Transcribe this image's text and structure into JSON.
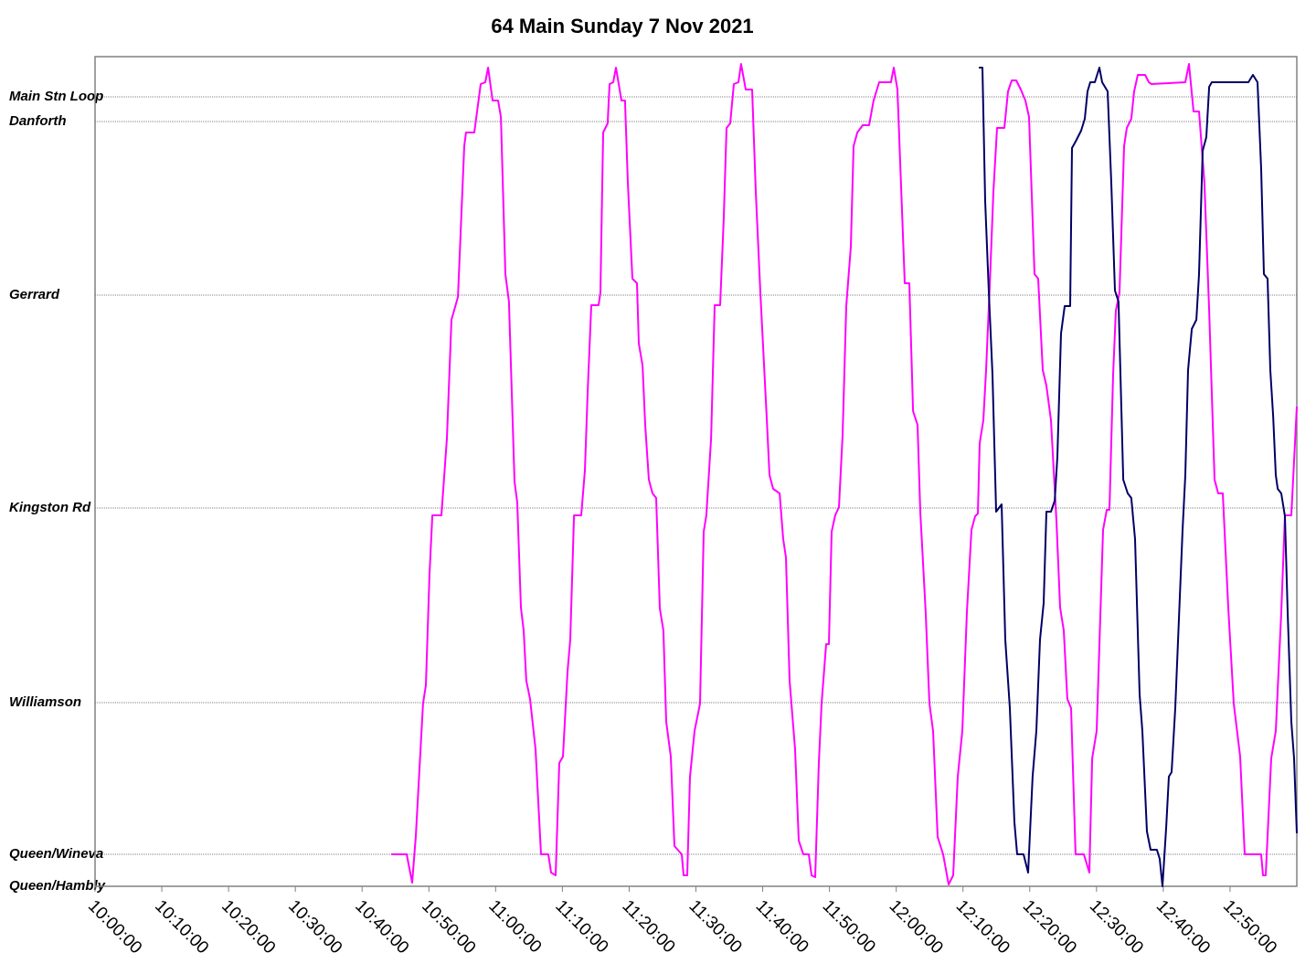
{
  "chart_data": {
    "type": "line",
    "title": "64 Main Sunday 7 Nov 2021",
    "xlim": [
      "10:00:00",
      "13:00:00"
    ],
    "xticks": [
      "10:00:00",
      "10:10:00",
      "10:20:00",
      "10:30:00",
      "10:40:00",
      "10:50:00",
      "11:00:00",
      "11:10:00",
      "11:20:00",
      "11:30:00",
      "11:40:00",
      "11:50:00",
      "12:00:00",
      "12:10:00",
      "12:20:00",
      "12:30:00",
      "12:40:00",
      "12:50:00"
    ],
    "ylim": [
      0,
      90.8
    ],
    "yticks": [
      {
        "value": 0,
        "label": "Queen/Hambly"
      },
      {
        "value": 3.5,
        "label": "Queen/Wineva"
      },
      {
        "value": 20.1,
        "label": "Williamson"
      },
      {
        "value": 41.4,
        "label": "Kingston Rd"
      },
      {
        "value": 64.7,
        "label": "Gerrard"
      },
      {
        "value": 83.7,
        "label": "Danforth"
      },
      {
        "value": 86.4,
        "label": "Main Stn Loop"
      }
    ],
    "grid": true,
    "series": [
      {
        "color": "#ff00ff",
        "x": [
          "10:44:21",
          "10:46:41",
          "10:47:30",
          "10:48:03",
          "10:49:08",
          "10:49:33",
          "10:50:06",
          "10:50:31",
          "10:51:53",
          "10:52:42",
          "10:53:23",
          "10:54:21",
          "10:55:18",
          "10:55:34",
          "10:56:48",
          "10:57:46",
          "10:58:27",
          "10:58:52",
          "10:59:33",
          "11:00:22",
          "11:00:47",
          "11:01:28",
          "11:02:00",
          "11:02:50",
          "11:03:14",
          "11:03:47",
          "11:04:12",
          "11:04:36",
          "11:05:09",
          "11:05:59",
          "11:06:48",
          "11:07:54",
          "11:08:18",
          "11:08:59",
          "11:09:32",
          "11:10:05",
          "11:10:46",
          "11:11:11",
          "11:11:44",
          "11:12:49",
          "11:13:22",
          "11:13:47",
          "11:14:20",
          "11:15:25",
          "11:15:42",
          "11:16:06",
          "11:16:47",
          "11:17:04",
          "11:17:37",
          "11:18:01",
          "11:18:51",
          "11:19:23",
          "11:19:48",
          "11:20:29",
          "11:21:10",
          "11:21:27",
          "11:22:00",
          "11:22:24",
          "11:22:57",
          "11:23:30",
          "11:24:03",
          "11:24:36",
          "11:25:08",
          "11:25:33",
          "11:26:14",
          "11:26:47",
          "11:27:53",
          "11:28:09",
          "11:28:42",
          "11:29:07",
          "11:29:48",
          "11:30:37",
          "11:31:10",
          "11:31:34",
          "11:32:16",
          "11:32:48",
          "11:33:38",
          "11:34:10",
          "11:34:35",
          "11:35:08",
          "11:35:41",
          "11:36:22",
          "11:36:46",
          "11:37:28",
          "11:38:25",
          "11:38:58",
          "11:39:39",
          "11:40:37",
          "11:41:01",
          "11:41:34",
          "11:42:32",
          "11:43:04",
          "11:43:29",
          "11:44:02",
          "11:44:51",
          "11:45:24",
          "11:46:05",
          "11:46:54",
          "11:47:19",
          "11:47:52",
          "11:48:25",
          "11:48:49",
          "11:49:30",
          "11:49:55",
          "11:50:20",
          "11:50:52",
          "11:51:25",
          "11:51:58",
          "11:52:31",
          "11:53:12",
          "11:53:37",
          "11:54:10",
          "11:54:59",
          "11:55:56",
          "11:56:37",
          "11:57:27",
          "11:59:13",
          "11:59:38",
          "12:00:11",
          "12:01:17",
          "12:01:58",
          "12:02:31",
          "12:03:12",
          "12:03:36",
          "12:04:25",
          "12:04:58",
          "12:05:31",
          "12:06:12",
          "12:07:02",
          "12:07:51",
          "12:08:32",
          "12:09:13",
          "12:09:54",
          "12:10:35",
          "12:11:16",
          "12:11:49",
          "12:12:14",
          "12:12:30",
          "12:13:03",
          "12:13:28",
          "12:14:01",
          "12:14:33",
          "12:15:06",
          "12:16:12",
          "12:16:45",
          "12:17:18",
          "12:17:59",
          "12:18:40",
          "12:19:21",
          "12:19:54",
          "12:20:43",
          "12:21:16",
          "12:21:57",
          "12:22:30",
          "12:23:11",
          "12:24:00",
          "12:24:33",
          "12:25:06",
          "12:25:38",
          "12:26:11",
          "12:26:52",
          "12:28:06",
          "12:28:56",
          "12:29:21",
          "12:30:01",
          "12:30:59",
          "12:31:32",
          "12:31:56",
          "12:32:29",
          "12:32:54",
          "12:33:27",
          "12:34:08",
          "12:34:32",
          "12:35:13",
          "12:35:38",
          "12:36:11",
          "12:37:17",
          "12:37:50",
          "12:38:14",
          "12:43:18",
          "12:43:51",
          "12:44:32",
          "12:45:21",
          "12:46:10",
          "12:46:52",
          "12:47:41",
          "12:48:14",
          "12:48:55",
          "12:49:44",
          "12:50:33",
          "12:51:31",
          "12:52:12",
          "12:54:40",
          "12:54:56",
          "12:55:21",
          "12:56:10",
          "12:56:51",
          "12:57:40",
          "12:58:13",
          "12:59:11",
          "13:00:00"
        ],
        "values": [
          3.5,
          3.5,
          0.4,
          5.5,
          20.0,
          22.0,
          34.2,
          40.6,
          40.6,
          49.0,
          62.0,
          64.5,
          81.0,
          82.5,
          82.5,
          87.8,
          88.0,
          89.6,
          86.0,
          86.0,
          84.2,
          67.0,
          64.0,
          44.3,
          42.0,
          30.5,
          28.0,
          22.5,
          20.5,
          15.0,
          3.5,
          3.5,
          1.5,
          1.2,
          13.5,
          14.2,
          23.5,
          27.0,
          40.6,
          40.6,
          45.5,
          54.0,
          63.6,
          63.6,
          65.0,
          82.5,
          83.5,
          87.8,
          88.0,
          89.6,
          86.0,
          86.0,
          77.0,
          66.5,
          66.0,
          59.4,
          57.0,
          50.5,
          44.5,
          43.0,
          42.5,
          30.4,
          28.0,
          18.0,
          14.2,
          4.4,
          3.5,
          1.2,
          1.2,
          12.0,
          17.0,
          20.0,
          38.8,
          40.6,
          49.0,
          63.6,
          63.6,
          73.0,
          83.0,
          83.5,
          87.8,
          88.0,
          90.0,
          87.2,
          87.2,
          76.0,
          65.0,
          51.0,
          45.0,
          43.5,
          43.0,
          38.0,
          36.0,
          22.5,
          15.0,
          5.0,
          3.5,
          3.5,
          1.2,
          1.0,
          13.5,
          20.0,
          26.5,
          26.5,
          38.8,
          40.6,
          41.5,
          49.4,
          63.5,
          70.0,
          81.0,
          82.5,
          83.3,
          83.3,
          86.0,
          88.0,
          88.0,
          89.6,
          87.2,
          66.0,
          66.0,
          52.0,
          50.5,
          41.0,
          30.0,
          20.0,
          17.0,
          5.4,
          3.5,
          0.2,
          1.2,
          12.0,
          17.0,
          30.0,
          39.0,
          40.5,
          40.8,
          48.5,
          51.0,
          56.5,
          66.0,
          76.0,
          83.0,
          83.0,
          87.0,
          88.2,
          88.2,
          87.2,
          86.0,
          84.2,
          67.0,
          66.5,
          56.5,
          54.8,
          51.0,
          40.0,
          30.5,
          28.0,
          20.5,
          19.5,
          3.5,
          3.5,
          1.5,
          14.0,
          17.0,
          39.0,
          41.2,
          41.2,
          56.0,
          63.0,
          65.0,
          81.0,
          83.0,
          84.0,
          87.0,
          88.8,
          88.8,
          88.0,
          87.8,
          88.0,
          90.0,
          84.8,
          84.8,
          77.0,
          63.0,
          44.5,
          43.0,
          43.0,
          30.5,
          20.0,
          14.2,
          3.5,
          3.5,
          1.2,
          1.2,
          14.0,
          17.0,
          30.0,
          40.6,
          40.6,
          52.5
        ]
      },
      {
        "color": "#000066",
        "x": [
          "12:12:22",
          "12:12:55",
          "12:13:19",
          "12:13:52",
          "12:14:25",
          "12:14:58",
          "12:15:47",
          "12:16:20",
          "12:17:01",
          "12:17:42",
          "12:18:07",
          "12:19:04",
          "12:19:45",
          "12:20:26",
          "12:20:59",
          "12:21:32",
          "12:22:05",
          "12:22:30",
          "12:23:11",
          "12:23:44",
          "12:24:08",
          "12:24:41",
          "12:25:14",
          "12:26:03",
          "12:26:20",
          "12:26:52",
          "12:27:42",
          "12:28:15",
          "12:28:39",
          "12:29:04",
          "12:29:45",
          "12:30:26",
          "12:30:51",
          "12:31:40",
          "12:32:13",
          "12:32:46",
          "12:33:18",
          "12:34:00",
          "12:34:41",
          "12:35:13",
          "12:35:46",
          "12:36:27",
          "12:36:52",
          "12:37:33",
          "12:38:06",
          "12:39:03",
          "12:39:28",
          "12:39:53",
          "12:40:26",
          "12:40:50",
          "12:41:15",
          "12:41:48",
          "12:42:21",
          "12:42:53",
          "12:43:18",
          "12:43:43",
          "12:44:16",
          "12:44:57",
          "12:45:21",
          "12:45:54",
          "12:46:27",
          "12:46:52",
          "12:47:16",
          "12:52:45",
          "12:53:26",
          "12:54:07",
          "12:54:40",
          "12:55:04",
          "12:55:37",
          "12:56:02",
          "12:56:27",
          "12:56:51",
          "12:57:08",
          "12:57:40",
          "12:58:13",
          "12:58:38",
          "12:59:11",
          "12:59:35",
          "13:00:00"
        ],
        "values": [
          89.6,
          89.6,
          75.0,
          65.0,
          56.0,
          41.0,
          41.8,
          27.0,
          19.5,
          7.0,
          3.5,
          3.5,
          1.5,
          12.0,
          17.0,
          27.0,
          31.0,
          41.0,
          41.0,
          42.2,
          47.0,
          60.5,
          63.5,
          63.5,
          80.8,
          81.5,
          82.7,
          84.0,
          87.0,
          88.0,
          88.0,
          89.6,
          88.0,
          87.0,
          77.0,
          65.2,
          64.0,
          44.5,
          43.0,
          42.5,
          38.0,
          21.0,
          17.0,
          6.0,
          4.0,
          4.0,
          3.0,
          0.0,
          6.5,
          12.0,
          12.5,
          19.5,
          29.5,
          39.0,
          45.0,
          56.5,
          61.0,
          62.0,
          67.0,
          80.5,
          82.0,
          87.5,
          88.0,
          88.0,
          88.8,
          88.0,
          78.5,
          67.0,
          66.5,
          56.5,
          51.5,
          45.0,
          43.5,
          43.0,
          40.5,
          30.0,
          18.0,
          14.0,
          5.8
        ]
      }
    ]
  }
}
